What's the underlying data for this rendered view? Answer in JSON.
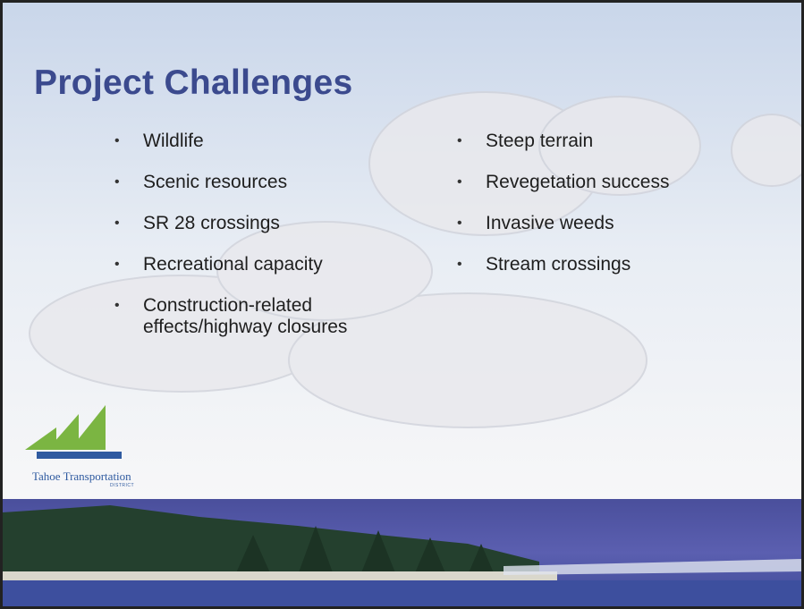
{
  "slide": {
    "title": "Project Challenges",
    "left_bullets": [
      "Wildlife",
      "Scenic resources",
      "SR 28 crossings",
      "Recreational capacity",
      "Construction-related effects/highway closures"
    ],
    "right_bullets": [
      "Steep terrain",
      "Revegetation success",
      "Invasive weeds",
      "Stream crossings"
    ],
    "logo": {
      "name": "Tahoe Transportation",
      "subtitle": "DISTRICT"
    }
  }
}
